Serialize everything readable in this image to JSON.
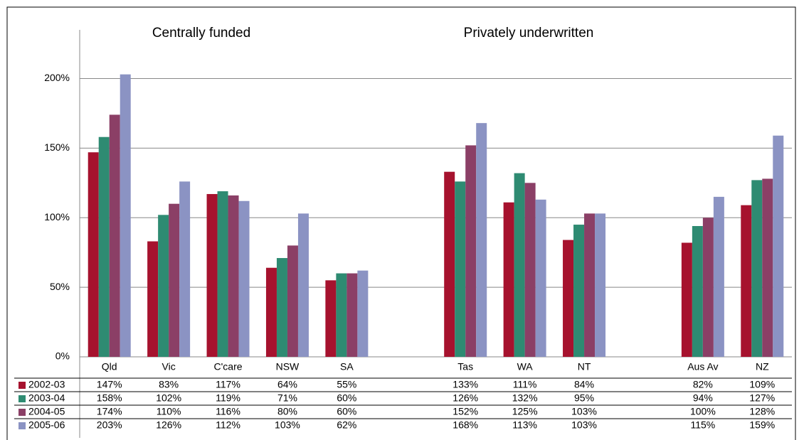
{
  "chart_data": {
    "type": "bar",
    "annotations": [
      "Centrally funded",
      "Privately underwritten"
    ],
    "categories": [
      "Qld",
      "Vic",
      "C'care",
      "NSW",
      "SA",
      null,
      "Tas",
      "WA",
      "NT",
      null,
      "Aus Av",
      "NZ"
    ],
    "series": [
      {
        "name": "2002-03",
        "color": "#a6122e",
        "values": [
          147,
          83,
          117,
          64,
          55,
          null,
          133,
          111,
          84,
          null,
          82,
          109
        ],
        "value_labels": [
          "147%",
          "83%",
          "117%",
          "64%",
          "55%",
          null,
          "133%",
          "111%",
          "84%",
          null,
          "82%",
          "109%"
        ]
      },
      {
        "name": "2003-04",
        "color": "#2e8b72",
        "values": [
          158,
          102,
          119,
          71,
          60,
          null,
          126,
          132,
          95,
          null,
          94,
          127
        ],
        "value_labels": [
          "158%",
          "102%",
          "119%",
          "71%",
          "60%",
          null,
          "126%",
          "132%",
          "95%",
          null,
          "94%",
          "127%"
        ]
      },
      {
        "name": "2004-05",
        "color": "#8b3f66",
        "values": [
          174,
          110,
          116,
          80,
          60,
          null,
          152,
          125,
          103,
          null,
          100,
          128
        ],
        "value_labels": [
          "174%",
          "110%",
          "116%",
          "80%",
          "60%",
          null,
          "152%",
          "125%",
          "103%",
          null,
          "100%",
          "128%"
        ]
      },
      {
        "name": "2005-06",
        "color": "#8b93c3",
        "values": [
          203,
          126,
          112,
          103,
          62,
          null,
          168,
          113,
          103,
          null,
          115,
          159
        ],
        "value_labels": [
          "203%",
          "126%",
          "112%",
          "103%",
          "62%",
          null,
          "168%",
          "113%",
          "103%",
          null,
          "115%",
          "159%"
        ]
      }
    ],
    "ylim": [
      0,
      235
    ],
    "yticks": [
      {
        "value": 0,
        "label": "0%"
      },
      {
        "value": 50,
        "label": "50%"
      },
      {
        "value": 100,
        "label": "100%"
      },
      {
        "value": 150,
        "label": "150%"
      },
      {
        "value": 200,
        "label": "200%"
      }
    ],
    "grid": true
  }
}
